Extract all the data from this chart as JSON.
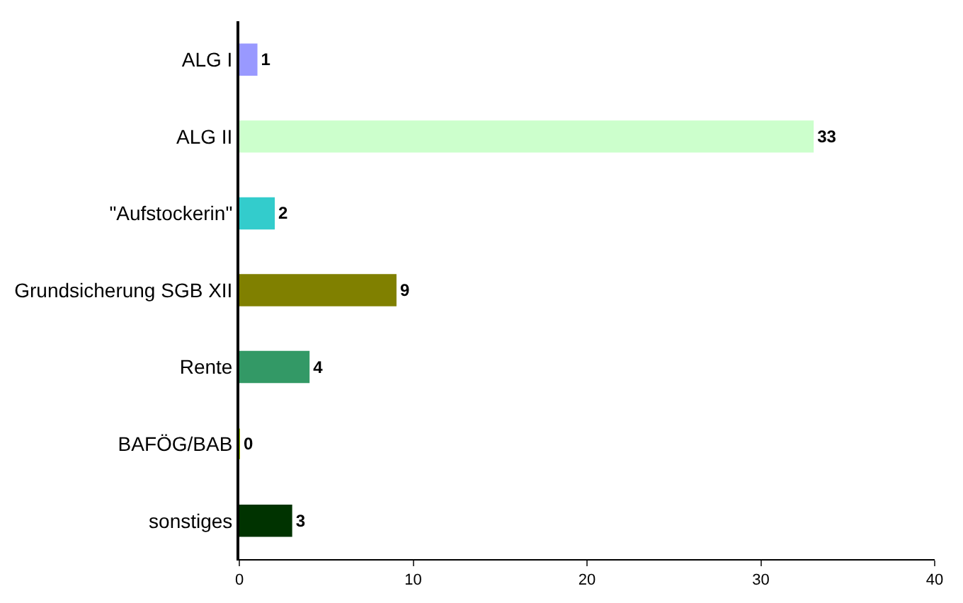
{
  "chart_data": {
    "type": "bar",
    "orientation": "horizontal",
    "categories": [
      "ALG I",
      "ALG II",
      "\"Aufstockerin\"",
      "Grundsicherung SGB XII",
      "Rente",
      "BAFÖG/BAB",
      "sonstiges"
    ],
    "values": [
      1,
      33,
      2,
      9,
      4,
      0,
      3
    ],
    "colors": [
      "#9999ff",
      "#ccffcc",
      "#33cccc",
      "#808000",
      "#339966",
      "#99cc00",
      "#003300"
    ],
    "xlim": [
      0,
      40
    ],
    "xticks": [
      0,
      10,
      20,
      30,
      40
    ],
    "data_labels": true,
    "legend": false
  }
}
